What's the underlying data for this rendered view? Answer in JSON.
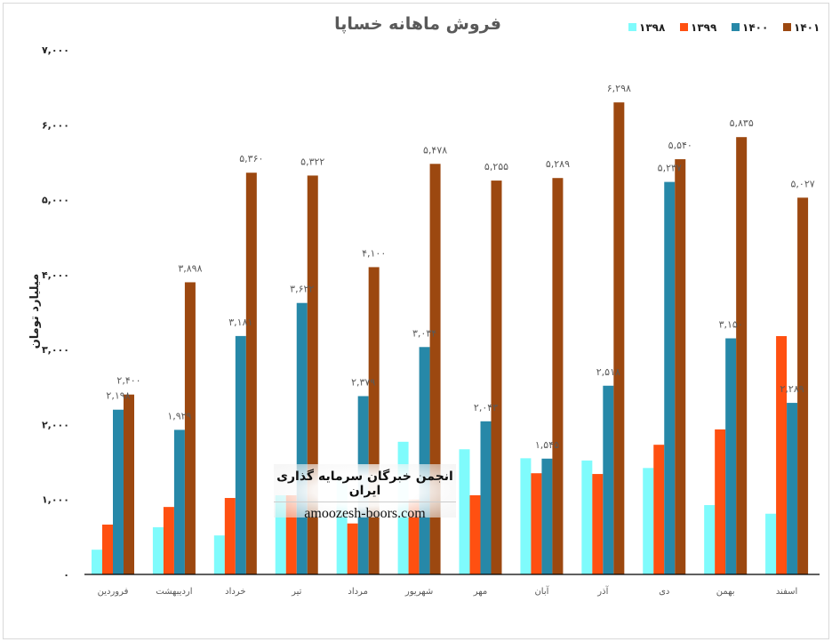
{
  "chart_data": {
    "type": "bar",
    "title": "فروش ماهانه خساپا",
    "ylabel": "میلیارد تومان",
    "xlabel": "",
    "ylim": [
      0,
      7000
    ],
    "yticks": [
      0,
      1000,
      2000,
      3000,
      4000,
      5000,
      6000,
      7000
    ],
    "ytick_labels": [
      "۰",
      "۱,۰۰۰",
      "۲,۰۰۰",
      "۳,۰۰۰",
      "۴,۰۰۰",
      "۵,۰۰۰",
      "۶,۰۰۰",
      "۷,۰۰۰"
    ],
    "grid": false,
    "legend_position": "top-right",
    "categories": [
      "فروردین",
      "اردیبهشت",
      "خرداد",
      "تیر",
      "مرداد",
      "شهریور",
      "مهر",
      "آبان",
      "آذر",
      "دی",
      "بهمن",
      "اسفند"
    ],
    "series": [
      {
        "name": "۱۳۹۸",
        "color": "#7FFBFC",
        "show_labels": false,
        "values": [
          330,
          630,
          520,
          1056,
          1290,
          1770,
          1670,
          1550,
          1520,
          1420,
          925,
          810
        ]
      },
      {
        "name": "۱۳۹۹",
        "color": "#FF5011",
        "show_labels": false,
        "values": [
          665,
          900,
          1020,
          1056,
          680,
          1000,
          1056,
          1350,
          1340,
          1730,
          1935,
          3180
        ]
      },
      {
        "name": "۱۴۰۰",
        "color": "#2788A8",
        "show_labels": true,
        "values": [
          2198,
          1929,
          3181,
          3622,
          2379,
          3034,
          2043,
          1545,
          2518,
          5237,
          3150,
          2289
        ],
        "labels": [
          "۲,۱۹۸",
          "۱,۹۲۹",
          "۳,۱۸۱",
          "۳,۶۲۲",
          "۲,۳۷۹",
          "۳,۰۳۴",
          "۲,۰۴۳",
          "۱,۵۴۵",
          "۲,۵۱۸",
          "۵,۲۳۷",
          "۳,۱۵۰",
          "۲,۲۸۹"
        ]
      },
      {
        "name": "۱۴۰۱",
        "color": "#9C4810",
        "show_labels": true,
        "values": [
          2400,
          3898,
          5360,
          5322,
          4100,
          5478,
          5255,
          5289,
          6298,
          5540,
          5835,
          5027
        ],
        "labels": [
          "۲,۴۰۰",
          "۳,۸۹۸",
          "۵,۳۶۰",
          "۵,۳۲۲",
          "۴,۱۰۰",
          "۵,۴۷۸",
          "۵,۲۵۵",
          "۵,۲۸۹",
          "۶,۲۹۸",
          "۵,۵۴۰",
          "۵,۸۳۵",
          "۵,۰۲۷"
        ]
      }
    ]
  },
  "watermark": {
    "fa": "انجمن خبرگان سرمایه گذاری ایران",
    "en": "amoozesh-boors.com"
  }
}
